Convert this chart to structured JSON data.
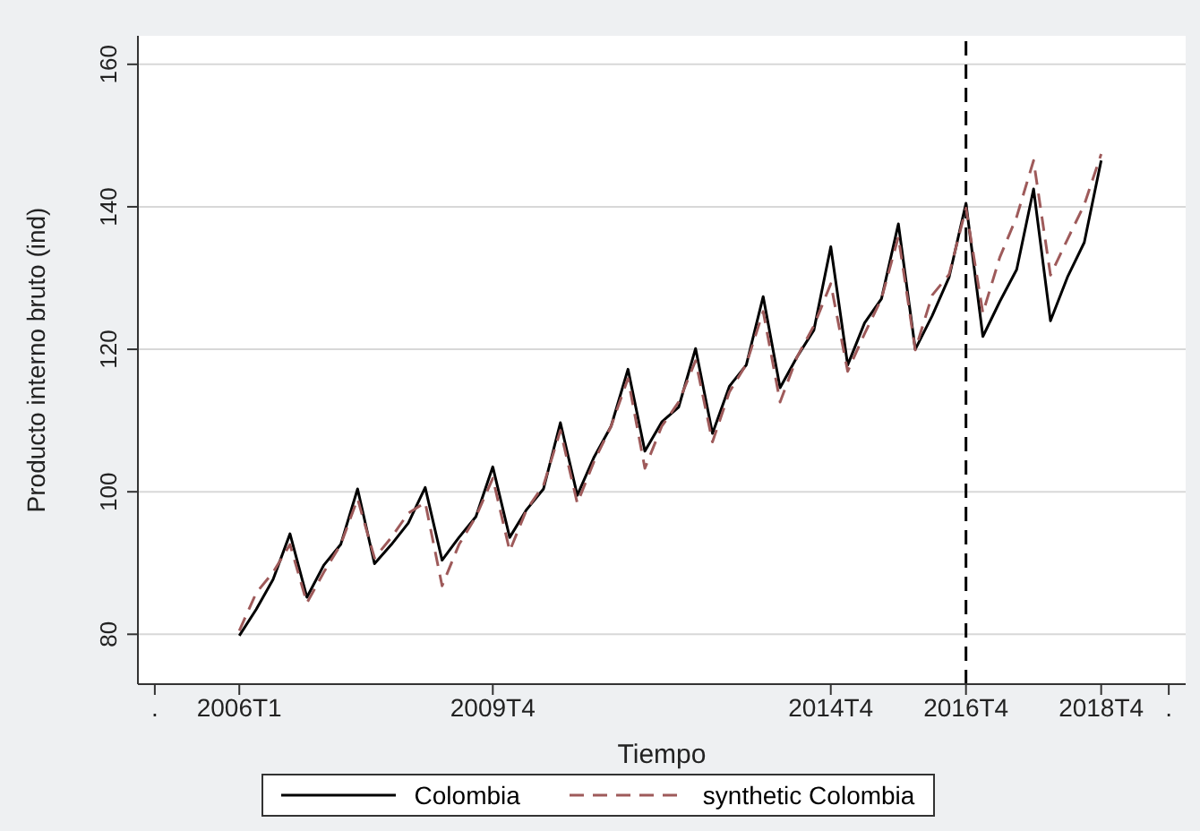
{
  "chart_data": {
    "type": "line",
    "xlabel": "Tiempo",
    "ylabel": "Producto interno bruto (ind)",
    "categories": [
      ".",
      null,
      null,
      null,
      null,
      "2006T1",
      null,
      null,
      null,
      null,
      null,
      null,
      null,
      null,
      null,
      null,
      null,
      null,
      null,
      null,
      "2009T4",
      null,
      null,
      null,
      null,
      null,
      null,
      null,
      null,
      null,
      null,
      null,
      null,
      null,
      null,
      null,
      null,
      null,
      null,
      null,
      "2014T4",
      null,
      null,
      null,
      null,
      null,
      null,
      null,
      "2016T4",
      null,
      null,
      null,
      null,
      null,
      null,
      null,
      "2018T4",
      null,
      null,
      null,
      "."
    ],
    "series": [
      {
        "name": "Colombia",
        "color": "#000000",
        "line_style": "solid",
        "values": [
          null,
          null,
          null,
          null,
          null,
          79.8,
          83.5,
          87.7,
          94.1,
          85.2,
          89.7,
          92.6,
          100.4,
          89.9,
          92.6,
          95.6,
          100.6,
          90.4,
          93.6,
          96.5,
          103.5,
          93.6,
          97.5,
          100.4,
          109.7,
          99.5,
          104.9,
          109.2,
          117.2,
          105.7,
          109.8,
          111.9,
          120.1,
          108.2,
          114.8,
          117.8,
          127.4,
          114.6,
          118.9,
          122.7,
          134.4,
          117.8,
          123.7,
          127.1,
          137.6,
          120,
          124.7,
          130.1,
          140.5,
          121.8,
          126.7,
          131.2,
          142.5,
          124,
          130.1,
          135,
          146.5,
          null,
          null,
          null,
          null
        ]
      },
      {
        "name": "synthetic Colombia",
        "color": "#9e5a5a",
        "line_style": "dashed",
        "values": [
          null,
          null,
          null,
          null,
          null,
          80.5,
          85.8,
          88.7,
          92.6,
          84.4,
          88.7,
          92.6,
          99,
          90.7,
          93.6,
          97,
          98.5,
          86.8,
          92.6,
          96.5,
          101.9,
          91.7,
          97.5,
          100.9,
          108.6,
          98.4,
          104.3,
          109.2,
          115.9,
          103.3,
          109.2,
          112.6,
          118.4,
          107,
          114,
          117.9,
          125.3,
          112.6,
          118.9,
          123.3,
          129.2,
          116.9,
          122.2,
          127.1,
          135.8,
          119.9,
          127.6,
          130.5,
          139.8,
          125.1,
          132.9,
          138.6,
          146.5,
          130.4,
          135.4,
          140.3,
          147.4,
          null,
          null,
          null,
          null
        ]
      }
    ],
    "ylim": [
      73,
      164
    ],
    "yticks": [
      80,
      100,
      120,
      140,
      160
    ],
    "ref_lines": [
      {
        "axis": "x",
        "value": "2016T4",
        "color": "#000000",
        "line_style": "dashed"
      }
    ],
    "grid": "y",
    "legend": "bottom",
    "marker": "none"
  }
}
